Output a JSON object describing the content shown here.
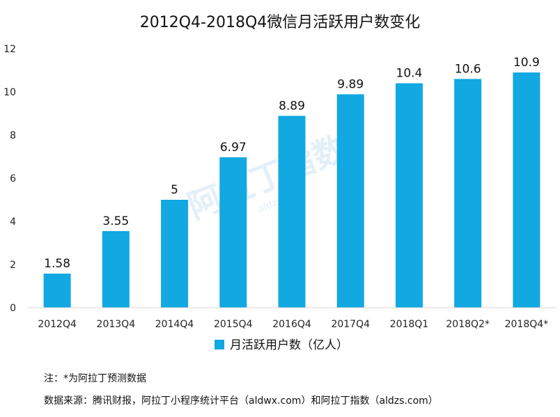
{
  "chart_data": {
    "type": "bar",
    "title": "2012Q4-2018Q4微信月活跃用户数变化",
    "categories": [
      "2012Q4",
      "2013Q4",
      "2014Q4",
      "2015Q4",
      "2016Q4",
      "2017Q4",
      "2018Q1",
      "2018Q2*",
      "2018Q4*"
    ],
    "series": [
      {
        "name": "月活跃用户数（亿人）",
        "values": [
          1.58,
          3.55,
          5,
          6.97,
          8.89,
          9.89,
          10.4,
          10.6,
          10.9
        ],
        "labels": [
          "1.58",
          "3.55",
          "5",
          "6.97",
          "8.89",
          "9.89",
          "10.4",
          "10.6",
          "10.9"
        ]
      }
    ],
    "ylim": [
      0,
      12
    ],
    "yticks": [
      "0",
      "2",
      "4",
      "6",
      "8",
      "10",
      "12"
    ],
    "xlabel": "",
    "ylabel": "",
    "grid": false,
    "legend_position": "bottom-center"
  },
  "colors": {
    "bar": "#12a8e2",
    "axis": "#d9d9d9"
  },
  "notes": {
    "line1": "注：*为阿拉丁预测数据",
    "line2": "数据来源：腾讯财报，阿拉丁小程序统计平台（aldwx.com）和阿拉丁指数（aldzs.com）"
  },
  "watermark": {
    "brand": "阿拉丁指数",
    "domain": "aldzs.com"
  }
}
